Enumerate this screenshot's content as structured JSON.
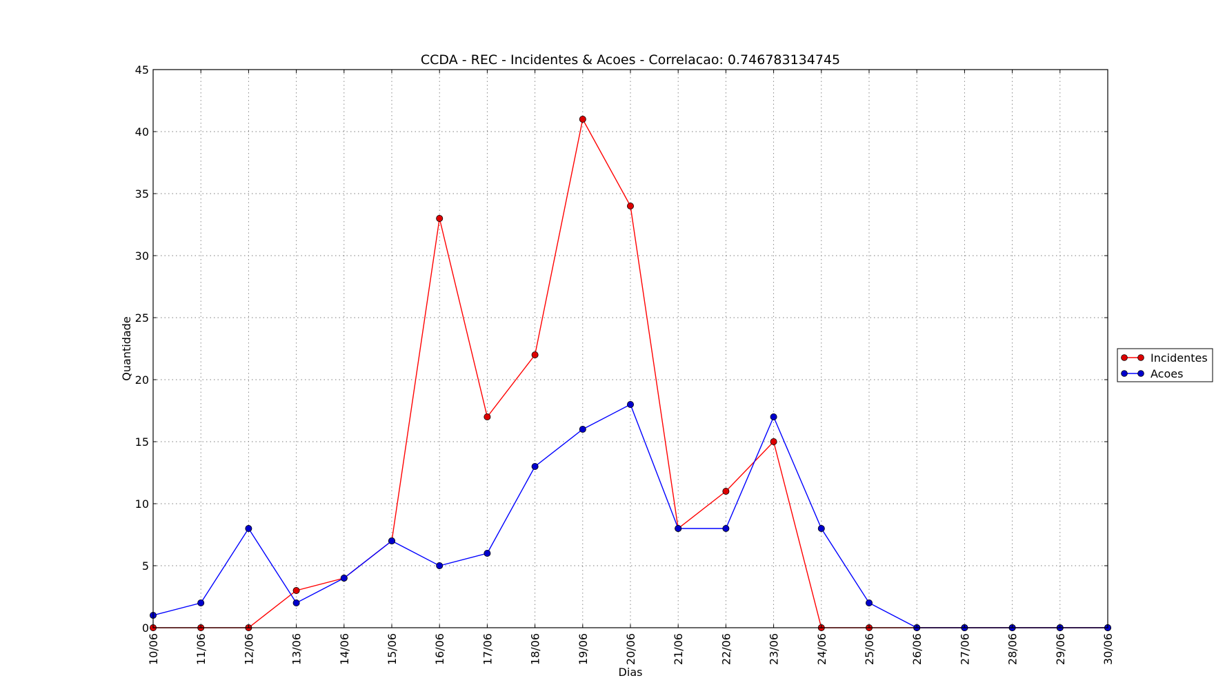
{
  "chart_data": {
    "type": "line",
    "title": "CCDA - REC - Incidentes & Acoes - Correlacao: 0.746783134745",
    "xlabel": "Dias",
    "ylabel": "Quantidade",
    "categories": [
      "10/06",
      "11/06",
      "12/06",
      "13/06",
      "14/06",
      "15/06",
      "16/06",
      "17/06",
      "18/06",
      "19/06",
      "20/06",
      "21/06",
      "22/06",
      "23/06",
      "24/06",
      "25/06",
      "26/06",
      "27/06",
      "28/06",
      "29/06",
      "30/06"
    ],
    "ylim": [
      0,
      45
    ],
    "yticks": [
      0,
      5,
      10,
      15,
      20,
      25,
      30,
      35,
      40,
      45
    ],
    "grid": true,
    "legend_position": "outside-right",
    "series": [
      {
        "name": "Incidentes",
        "color": "#ff0000",
        "marker_fill": "#dd0000",
        "values": [
          0,
          0,
          0,
          3,
          4,
          7,
          33,
          17,
          22,
          41,
          34,
          8,
          11,
          15,
          0,
          0,
          0,
          0,
          0,
          0,
          0
        ]
      },
      {
        "name": "Acoes",
        "color": "#0000ff",
        "marker_fill": "#0000cc",
        "values": [
          1,
          2,
          8,
          2,
          4,
          7,
          5,
          6,
          13,
          16,
          18,
          8,
          8,
          17,
          8,
          2,
          0,
          0,
          0,
          0,
          0
        ]
      }
    ]
  }
}
